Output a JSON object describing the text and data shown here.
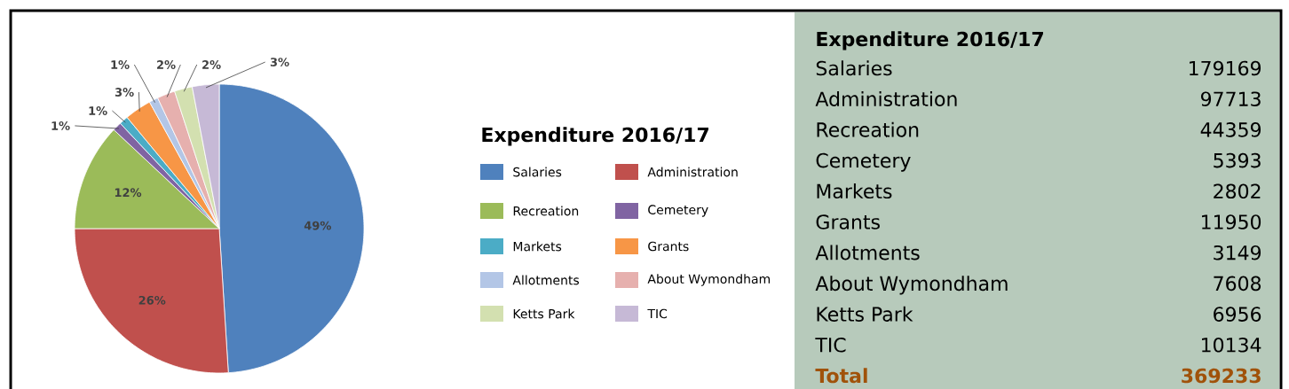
{
  "chart_data": [
    {
      "type": "pie",
      "legend_title": "Expenditure 2016/17",
      "categories": [
        "Salaries",
        "Administration",
        "Recreation",
        "Cemetery",
        "Markets",
        "Grants",
        "Allotments",
        "About Wymondham",
        "Ketts Park",
        "TIC"
      ],
      "values": [
        49,
        26,
        12,
        1,
        1,
        3,
        1,
        2,
        2,
        3
      ],
      "value_labels": [
        "49%",
        "26%",
        "12%",
        "1%",
        "1%",
        "3%",
        "1%",
        "2%",
        "2%",
        "3%"
      ],
      "colors": [
        "#4f81bd",
        "#c0504d",
        "#9bbb59",
        "#8064a2",
        "#4bacc6",
        "#f79646",
        "#b3c6e6",
        "#e6b0ae",
        "#d3e0b0",
        "#c6b9d6"
      ],
      "legend": "right"
    },
    {
      "type": "other",
      "title": "Expenditure 2016/17",
      "annotations": [
        "Salaries",
        "179169",
        "Administration",
        "97713",
        "Recreation",
        "44359",
        "Cemetery",
        "5393",
        "Markets",
        "2802",
        "Grants",
        "11950",
        "Allotments",
        "3149",
        "About Wymondham",
        "7608",
        "Ketts Park",
        "6956",
        "TIC",
        "10134",
        "Total",
        "369233"
      ]
    }
  ]
}
